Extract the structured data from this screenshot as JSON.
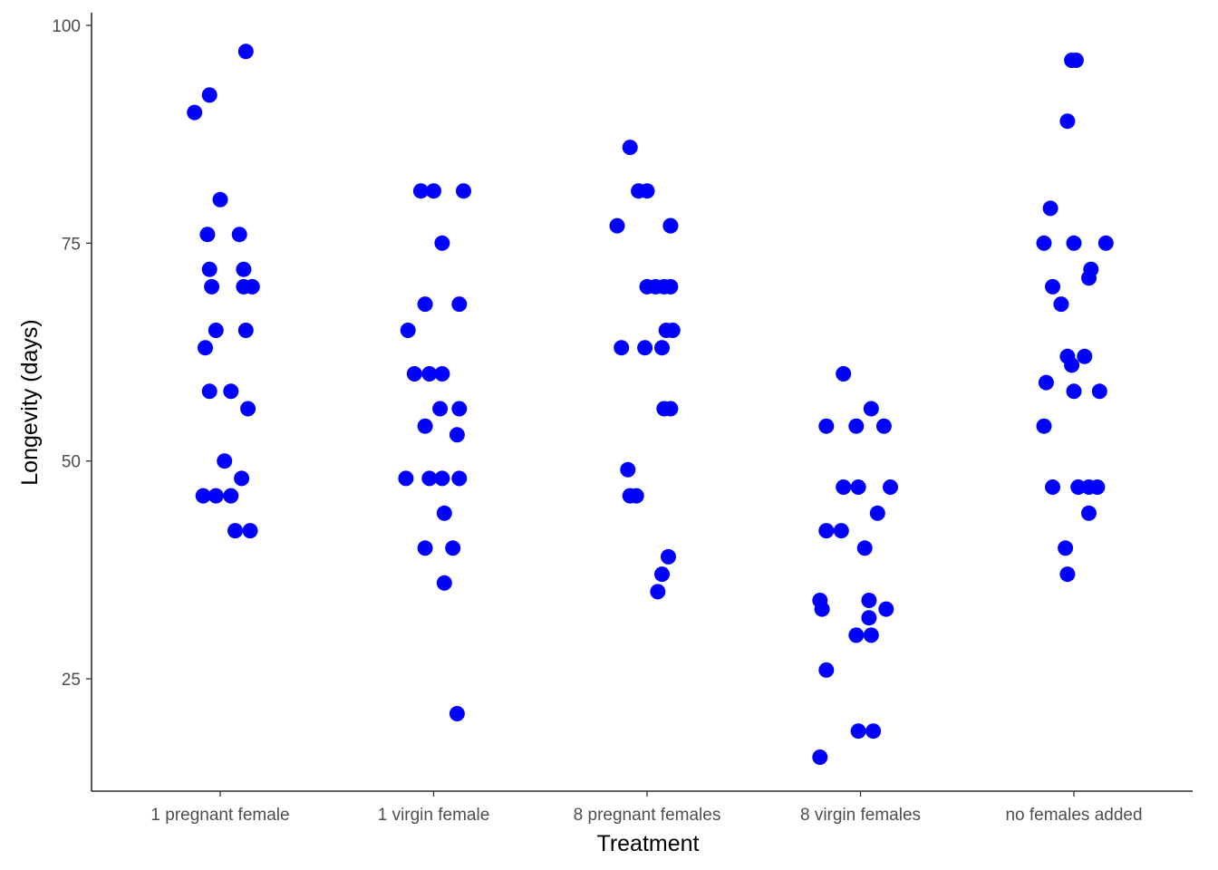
{
  "chart_data": {
    "type": "scatter",
    "xlabel": "Treatment",
    "ylabel": "Longevity (days)",
    "categories": [
      "1 pregnant female",
      "1 virgin female",
      "8 pregnant females",
      "8 virgin females",
      "no females added"
    ],
    "ylim": [
      12.5,
      102
    ],
    "yticks": [
      25,
      50,
      75,
      100
    ],
    "grid": false,
    "legend": "none",
    "point_color": "#0000ff",
    "series": [
      {
        "category": "1 pregnant female",
        "points": [
          {
            "x": 1.12,
            "y": 97
          },
          {
            "x": 0.95,
            "y": 92
          },
          {
            "x": 0.88,
            "y": 90
          },
          {
            "x": 1.0,
            "y": 80
          },
          {
            "x": 0.94,
            "y": 76
          },
          {
            "x": 1.09,
            "y": 76
          },
          {
            "x": 0.95,
            "y": 72
          },
          {
            "x": 1.11,
            "y": 72
          },
          {
            "x": 0.96,
            "y": 70
          },
          {
            "x": 1.11,
            "y": 70
          },
          {
            "x": 1.15,
            "y": 70
          },
          {
            "x": 0.98,
            "y": 65
          },
          {
            "x": 1.12,
            "y": 65
          },
          {
            "x": 0.93,
            "y": 63
          },
          {
            "x": 0.95,
            "y": 58
          },
          {
            "x": 1.05,
            "y": 58
          },
          {
            "x": 1.13,
            "y": 56
          },
          {
            "x": 1.02,
            "y": 50
          },
          {
            "x": 1.1,
            "y": 48
          },
          {
            "x": 0.92,
            "y": 46
          },
          {
            "x": 0.98,
            "y": 46
          },
          {
            "x": 1.05,
            "y": 46
          },
          {
            "x": 1.07,
            "y": 42
          },
          {
            "x": 1.14,
            "y": 42
          }
        ]
      },
      {
        "category": "1 virgin female",
        "points": [
          {
            "x": 1.94,
            "y": 81
          },
          {
            "x": 2.0,
            "y": 81
          },
          {
            "x": 2.14,
            "y": 81
          },
          {
            "x": 2.04,
            "y": 75
          },
          {
            "x": 1.96,
            "y": 68
          },
          {
            "x": 2.12,
            "y": 68
          },
          {
            "x": 1.88,
            "y": 65
          },
          {
            "x": 1.91,
            "y": 60
          },
          {
            "x": 1.98,
            "y": 60
          },
          {
            "x": 2.04,
            "y": 60
          },
          {
            "x": 2.03,
            "y": 56
          },
          {
            "x": 2.12,
            "y": 56
          },
          {
            "x": 1.96,
            "y": 54
          },
          {
            "x": 2.11,
            "y": 53
          },
          {
            "x": 1.98,
            "y": 48
          },
          {
            "x": 2.04,
            "y": 48
          },
          {
            "x": 1.87,
            "y": 48
          },
          {
            "x": 2.12,
            "y": 48
          },
          {
            "x": 2.05,
            "y": 44
          },
          {
            "x": 2.09,
            "y": 40
          },
          {
            "x": 1.96,
            "y": 40
          },
          {
            "x": 2.05,
            "y": 36
          },
          {
            "x": 2.11,
            "y": 21
          }
        ]
      },
      {
        "category": "8 pregnant females",
        "points": [
          {
            "x": 2.92,
            "y": 86
          },
          {
            "x": 2.96,
            "y": 81
          },
          {
            "x": 3.0,
            "y": 81
          },
          {
            "x": 2.86,
            "y": 77
          },
          {
            "x": 3.11,
            "y": 77
          },
          {
            "x": 3.11,
            "y": 77
          },
          {
            "x": 3.0,
            "y": 70
          },
          {
            "x": 3.04,
            "y": 70
          },
          {
            "x": 3.08,
            "y": 70
          },
          {
            "x": 3.11,
            "y": 70
          },
          {
            "x": 3.09,
            "y": 65
          },
          {
            "x": 3.12,
            "y": 65
          },
          {
            "x": 2.88,
            "y": 63
          },
          {
            "x": 2.99,
            "y": 63
          },
          {
            "x": 3.07,
            "y": 63
          },
          {
            "x": 3.08,
            "y": 56
          },
          {
            "x": 3.11,
            "y": 56
          },
          {
            "x": 2.91,
            "y": 49
          },
          {
            "x": 2.92,
            "y": 46
          },
          {
            "x": 2.95,
            "y": 46
          },
          {
            "x": 3.1,
            "y": 39
          },
          {
            "x": 3.07,
            "y": 37
          },
          {
            "x": 3.05,
            "y": 35
          }
        ]
      },
      {
        "category": "8 virgin females",
        "points": [
          {
            "x": 3.92,
            "y": 60
          },
          {
            "x": 4.05,
            "y": 56
          },
          {
            "x": 3.84,
            "y": 54
          },
          {
            "x": 3.98,
            "y": 54
          },
          {
            "x": 4.11,
            "y": 54
          },
          {
            "x": 4.14,
            "y": 47
          },
          {
            "x": 3.92,
            "y": 47
          },
          {
            "x": 3.99,
            "y": 47
          },
          {
            "x": 4.08,
            "y": 44
          },
          {
            "x": 3.84,
            "y": 42
          },
          {
            "x": 3.91,
            "y": 42
          },
          {
            "x": 4.02,
            "y": 40
          },
          {
            "x": 3.81,
            "y": 34
          },
          {
            "x": 4.04,
            "y": 34
          },
          {
            "x": 4.12,
            "y": 33
          },
          {
            "x": 3.82,
            "y": 33
          },
          {
            "x": 4.04,
            "y": 32
          },
          {
            "x": 3.98,
            "y": 30
          },
          {
            "x": 4.05,
            "y": 30
          },
          {
            "x": 3.84,
            "y": 26
          },
          {
            "x": 4.06,
            "y": 19
          },
          {
            "x": 3.99,
            "y": 19
          },
          {
            "x": 3.81,
            "y": 16
          }
        ]
      },
      {
        "category": "no females added",
        "points": [
          {
            "x": 5.01,
            "y": 96
          },
          {
            "x": 4.99,
            "y": 96
          },
          {
            "x": 4.97,
            "y": 89
          },
          {
            "x": 4.89,
            "y": 79
          },
          {
            "x": 4.86,
            "y": 75
          },
          {
            "x": 5.0,
            "y": 75
          },
          {
            "x": 5.15,
            "y": 75
          },
          {
            "x": 5.08,
            "y": 72
          },
          {
            "x": 5.07,
            "y": 71
          },
          {
            "x": 4.9,
            "y": 70
          },
          {
            "x": 4.94,
            "y": 68
          },
          {
            "x": 5.05,
            "y": 62
          },
          {
            "x": 4.97,
            "y": 62
          },
          {
            "x": 4.99,
            "y": 61
          },
          {
            "x": 4.87,
            "y": 59
          },
          {
            "x": 5.0,
            "y": 58
          },
          {
            "x": 5.12,
            "y": 58
          },
          {
            "x": 4.86,
            "y": 54
          },
          {
            "x": 4.9,
            "y": 47
          },
          {
            "x": 5.02,
            "y": 47
          },
          {
            "x": 5.07,
            "y": 47
          },
          {
            "x": 5.11,
            "y": 47
          },
          {
            "x": 5.07,
            "y": 44
          },
          {
            "x": 4.96,
            "y": 40
          },
          {
            "x": 4.97,
            "y": 37
          }
        ]
      }
    ]
  }
}
